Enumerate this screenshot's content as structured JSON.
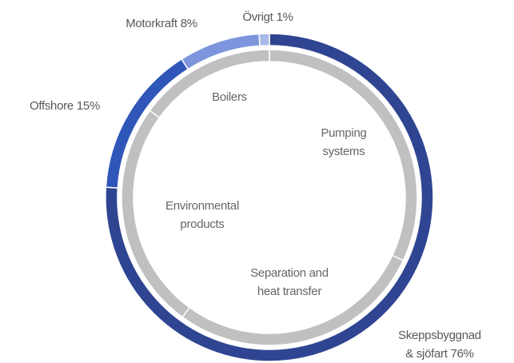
{
  "chart_data": {
    "type": "donut",
    "series": [
      {
        "categories": [
          [
            "Skeppsbyggnad",
            "& sjöfart"
          ],
          [
            "Offshore"
          ],
          [
            "Motorkraft"
          ],
          [
            "Övrigt"
          ]
        ],
        "values": [
          76,
          15,
          8,
          1
        ],
        "value_labels": [
          "76%",
          "15%",
          "8%",
          "1%"
        ],
        "colors": [
          "#2f4592",
          "#2f56b8",
          "#7d95dc",
          "#aab9ea"
        ]
      },
      {
        "categories": [
          [
            "Pumping",
            "systems"
          ],
          [
            "Separation and",
            "heat transfer"
          ],
          [
            "Environmental",
            "products"
          ],
          [
            "Boilers"
          ]
        ],
        "values": [
          32,
          28,
          25,
          15
        ],
        "colors": [
          "#c0c0c0",
          "#c0c0c0",
          "#c0c0c0",
          "#c0c0c0"
        ]
      }
    ]
  }
}
